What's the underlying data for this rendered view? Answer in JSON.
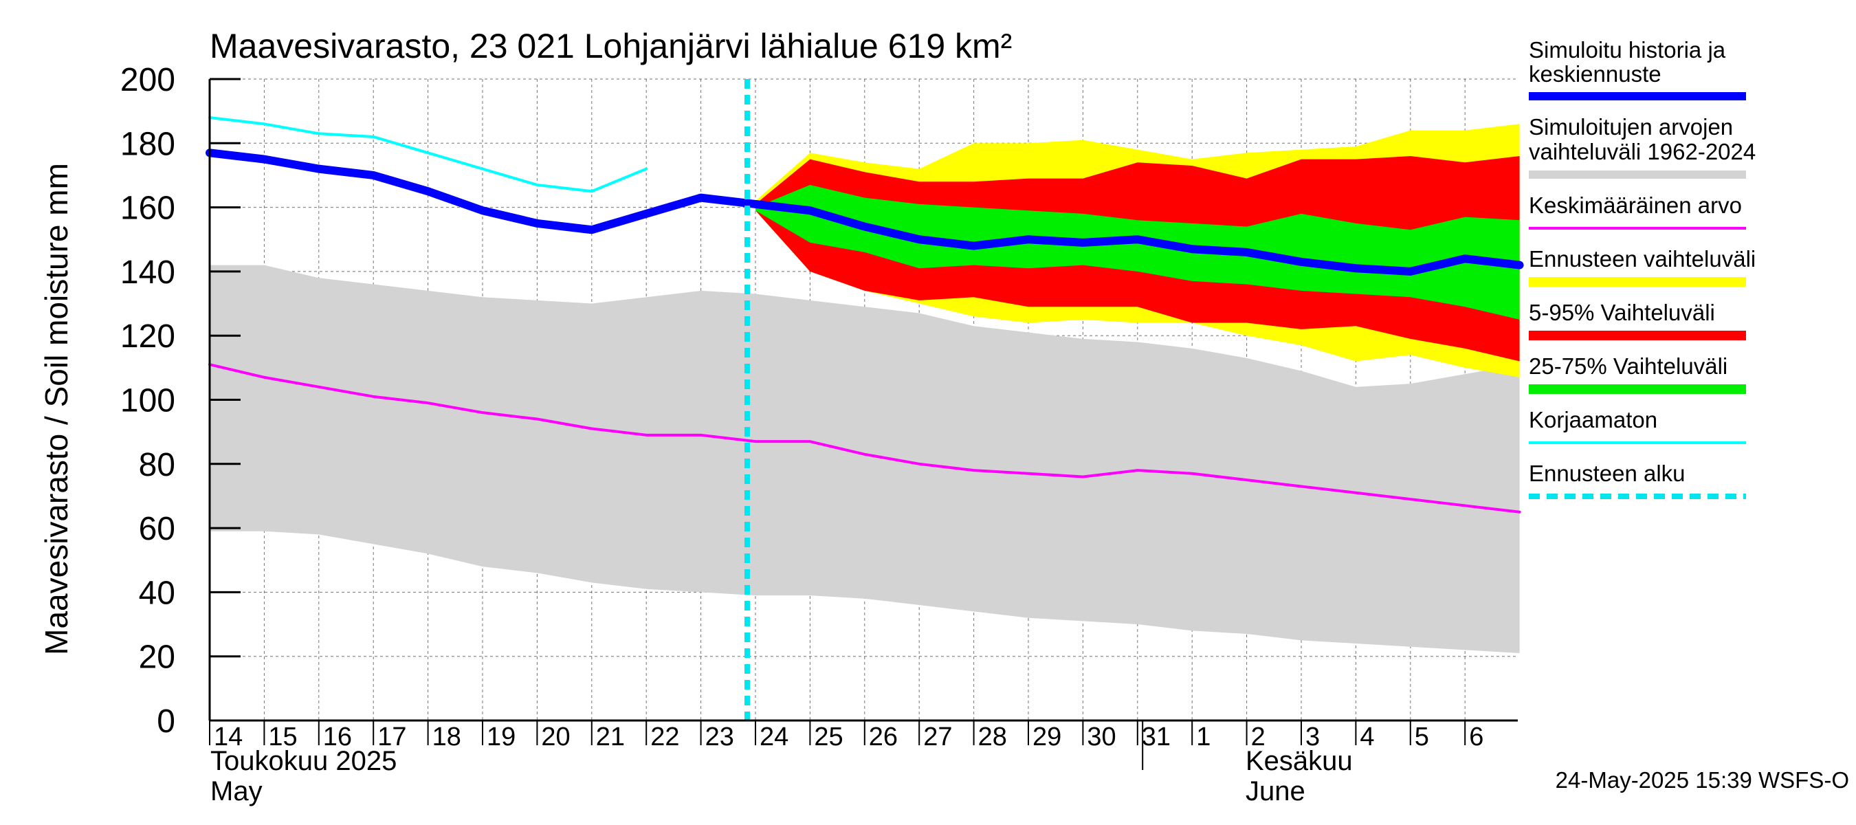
{
  "chart_data": {
    "type": "area",
    "title": "Maavesivarasto, 23 021 Lohjanjärvi lähialue 619 km²",
    "ylabel": "Maavesivarasto / Soil moisture   mm",
    "ylim": [
      0,
      200
    ],
    "yticks": [
      0,
      20,
      40,
      60,
      80,
      100,
      120,
      140,
      160,
      180,
      200
    ],
    "grid": true,
    "x_day_labels": [
      "14",
      "15",
      "16",
      "17",
      "18",
      "19",
      "20",
      "21",
      "22",
      "23",
      "24",
      "25",
      "26",
      "27",
      "28",
      "29",
      "30",
      "31",
      "1",
      "2",
      "3",
      "4",
      "5",
      "6"
    ],
    "month_labels": [
      {
        "fi": "Toukokuu  2025",
        "en": "May"
      },
      {
        "fi": "Kesäkuu",
        "en": "June"
      }
    ],
    "forecast_start_day_index": 10,
    "timestamp": "24-May-2025 15:39 WSFS-O",
    "legend": [
      {
        "id": "history",
        "label": "Simuloitu historia ja keskiennuste",
        "color": "#0000ff"
      },
      {
        "id": "hist_range",
        "label": "Simuloitujen arvojen vaihteluväli 1962-2024",
        "color": "#d3d3d3"
      },
      {
        "id": "mean",
        "label": "Keskimääräinen arvo",
        "color": "#ff00ff"
      },
      {
        "id": "fc_range",
        "label": "Ennusteen vaihteluväli",
        "color": "#ffff00"
      },
      {
        "id": "p5_95",
        "label": "5-95% Vaihteluväli",
        "color": "#ff0000"
      },
      {
        "id": "p25_75",
        "label": "25-75% Vaihteluväli",
        "color": "#00ee00"
      },
      {
        "id": "uncorrected",
        "label": "Korjaamaton",
        "color": "#00ffff"
      },
      {
        "id": "fc_start",
        "label": "Ennusteen alku",
        "color": "#00e5ee"
      }
    ],
    "series": {
      "hist_range": {
        "x": [
          0,
          1,
          2,
          3,
          4,
          5,
          6,
          7,
          8,
          9,
          10,
          11,
          12,
          13,
          14,
          15,
          16,
          17,
          18,
          19,
          20,
          21,
          22,
          23,
          24
        ],
        "upper": [
          142,
          142,
          138,
          136,
          134,
          132,
          131,
          130,
          132,
          134,
          133,
          131,
          129,
          127,
          123,
          121,
          119,
          118,
          116,
          113,
          109,
          104,
          105,
          108,
          111
        ],
        "lower": [
          59,
          59,
          58,
          55,
          52,
          48,
          46,
          43,
          41,
          40,
          39,
          39,
          38,
          36,
          34,
          32,
          31,
          30,
          28,
          27,
          25,
          24,
          23,
          22,
          21
        ]
      },
      "mean": {
        "x": [
          0,
          1,
          2,
          3,
          4,
          5,
          6,
          7,
          8,
          9,
          10,
          11,
          12,
          13,
          14,
          15,
          16,
          17,
          18,
          19,
          20,
          21,
          22,
          23,
          24
        ],
        "values": [
          111,
          107,
          104,
          101,
          99,
          96,
          94,
          91,
          89,
          89,
          87,
          87,
          83,
          80,
          78,
          77,
          76,
          78,
          77,
          75,
          73,
          71,
          69,
          67,
          65
        ]
      },
      "fc_range": {
        "x": [
          10,
          11,
          12,
          13,
          14,
          15,
          16,
          17,
          18,
          19,
          20,
          21,
          22,
          23,
          24
        ],
        "upper": [
          162,
          177,
          174,
          172,
          180,
          180,
          181,
          178,
          175,
          177,
          178,
          179,
          184,
          184,
          186
        ],
        "lower": [
          159,
          140,
          134,
          130,
          126,
          124,
          125,
          124,
          124,
          120,
          117,
          112,
          114,
          110,
          107
        ]
      },
      "p5_95": {
        "x": [
          10,
          11,
          12,
          13,
          14,
          15,
          16,
          17,
          18,
          19,
          20,
          21,
          22,
          23,
          24
        ],
        "upper": [
          161,
          175,
          171,
          168,
          168,
          169,
          169,
          174,
          173,
          169,
          175,
          175,
          176,
          174,
          176
        ],
        "lower": [
          159,
          140,
          134,
          131,
          132,
          129,
          129,
          129,
          124,
          124,
          122,
          123,
          119,
          116,
          112
        ]
      },
      "p25_75": {
        "x": [
          10,
          11,
          12,
          13,
          14,
          15,
          16,
          17,
          18,
          19,
          20,
          21,
          22,
          23,
          24
        ],
        "upper": [
          160,
          167,
          163,
          161,
          160,
          159,
          158,
          156,
          155,
          154,
          158,
          155,
          153,
          157,
          156
        ],
        "lower": [
          159,
          149,
          146,
          141,
          142,
          141,
          142,
          140,
          137,
          136,
          134,
          133,
          132,
          129,
          125
        ]
      },
      "history": {
        "x": [
          0,
          1,
          2,
          3,
          4,
          5,
          6,
          7,
          8,
          9,
          10,
          11,
          12,
          13,
          14,
          15,
          16,
          17,
          18,
          19,
          20,
          21,
          22,
          23,
          24
        ],
        "values": [
          177,
          175,
          172,
          170,
          165,
          159,
          155,
          153,
          158,
          163,
          161,
          159,
          154,
          150,
          148,
          150,
          149,
          150,
          147,
          146,
          143,
          141,
          140,
          144,
          142
        ]
      },
      "uncorrected": {
        "x": [
          0,
          1,
          2,
          3,
          4,
          5,
          6,
          7,
          8
        ],
        "values": [
          188,
          186,
          183,
          182,
          177,
          172,
          167,
          165,
          172
        ]
      }
    }
  }
}
